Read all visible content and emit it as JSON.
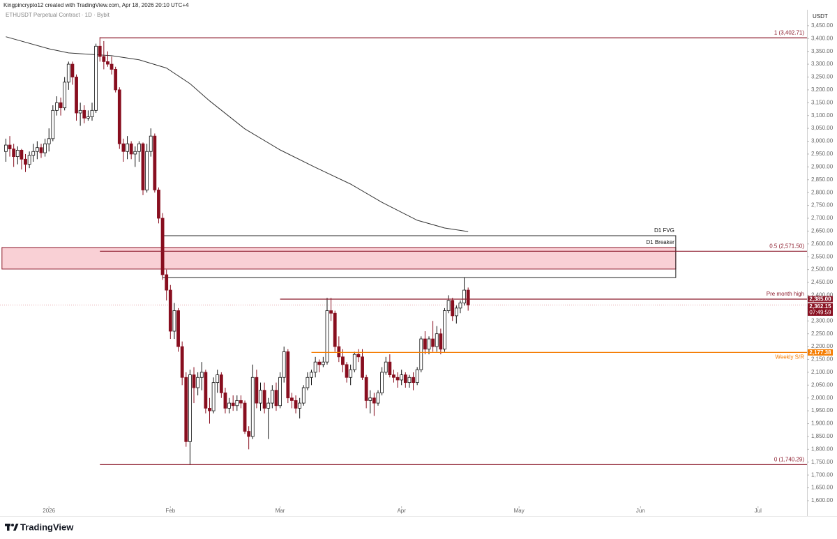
{
  "header": {
    "credit": "Kingpincrypto12 created with TradingView.com, Apr 18, 2026 20:10 UTC+4"
  },
  "brand": "TradingView",
  "chart_data": {
    "type": "candlestick",
    "title": "ETHUSDT Perpetual Contract · 1D · Bybit",
    "currency": "USDT",
    "up_color": "#ffffff",
    "down_color": "#880e1f",
    "outline_color": "#111111",
    "xlim": [
      -12.5,
      193.5
    ],
    "xticks": [
      {
        "value": 0,
        "label": "2026"
      },
      {
        "value": 31,
        "label": "Feb"
      },
      {
        "value": 59,
        "label": "Mar"
      },
      {
        "value": 90,
        "label": "Apr"
      },
      {
        "value": 120,
        "label": "May"
      },
      {
        "value": 151,
        "label": "Jun"
      },
      {
        "value": 181,
        "label": "Jul"
      }
    ],
    "ylim": [
      1581,
      3512
    ],
    "yticks": [
      {
        "value": 1600,
        "label": "1,600.00"
      },
      {
        "value": 1650,
        "label": "1,650.00"
      },
      {
        "value": 1700,
        "label": "1,700.00"
      },
      {
        "value": 1750,
        "label": "1,750.00"
      },
      {
        "value": 1800,
        "label": "1,800.00"
      },
      {
        "value": 1850,
        "label": "1,850.00"
      },
      {
        "value": 1900,
        "label": "1,900.00"
      },
      {
        "value": 1950,
        "label": "1,950.00"
      },
      {
        "value": 2000,
        "label": "2,000.00"
      },
      {
        "value": 2050,
        "label": "2,050.00"
      },
      {
        "value": 2100,
        "label": "2,100.00"
      },
      {
        "value": 2150,
        "label": "2,150.00"
      },
      {
        "value": 2200,
        "label": "2,200.00"
      },
      {
        "value": 2250,
        "label": "2,250.00"
      },
      {
        "value": 2300,
        "label": "2,300.00"
      },
      {
        "value": 2350,
        "label": "2,350.00"
      },
      {
        "value": 2400,
        "label": "2,400.00"
      },
      {
        "value": 2450,
        "label": "2,450.00"
      },
      {
        "value": 2500,
        "label": "2,500.00"
      },
      {
        "value": 2550,
        "label": "2,550.00"
      },
      {
        "value": 2600,
        "label": "2,600.00"
      },
      {
        "value": 2650,
        "label": "2,650.00"
      },
      {
        "value": 2700,
        "label": "2,700.00"
      },
      {
        "value": 2750,
        "label": "2,750.00"
      },
      {
        "value": 2800,
        "label": "2,800.00"
      },
      {
        "value": 2850,
        "label": "2,850.00"
      },
      {
        "value": 2900,
        "label": "2,900.00"
      },
      {
        "value": 2950,
        "label": "2,950.00"
      },
      {
        "value": 3000,
        "label": "3,000.00"
      },
      {
        "value": 3050,
        "label": "3,050.00"
      },
      {
        "value": 3100,
        "label": "3,100.00"
      },
      {
        "value": 3150,
        "label": "3,150.00"
      },
      {
        "value": 3200,
        "label": "3,200.00"
      },
      {
        "value": 3250,
        "label": "3,250.00"
      },
      {
        "value": 3300,
        "label": "3,300.00"
      },
      {
        "value": 3350,
        "label": "3,350.00"
      },
      {
        "value": 3400,
        "label": "3,400.00"
      },
      {
        "value": 3450,
        "label": "3,450.00"
      }
    ],
    "x": [
      -11,
      -10,
      -9,
      -8,
      -7,
      -6,
      -5,
      -4,
      -3,
      -2,
      -1,
      0,
      1,
      2,
      3,
      4,
      5,
      6,
      7,
      8,
      9,
      10,
      11,
      12,
      13,
      14,
      15,
      16,
      17,
      18,
      19,
      20,
      21,
      22,
      23,
      24,
      25,
      26,
      27,
      28,
      29,
      30,
      31,
      32,
      33,
      34,
      35,
      36,
      37,
      38,
      39,
      40,
      41,
      42,
      43,
      44,
      45,
      46,
      47,
      48,
      49,
      50,
      51,
      52,
      53,
      54,
      55,
      56,
      57,
      58,
      59,
      60,
      61,
      62,
      63,
      64,
      65,
      66,
      67,
      68,
      69,
      70,
      71,
      72,
      73,
      74,
      75,
      76,
      77,
      78,
      79,
      80,
      81,
      82,
      83,
      84,
      85,
      86,
      87,
      88,
      89,
      90,
      91,
      92,
      93,
      94,
      95,
      96,
      97,
      98,
      99,
      100,
      101,
      102,
      103,
      104,
      105,
      106,
      107
    ],
    "open": [
      2960,
      2985,
      2970,
      2940,
      2965,
      2930,
      2910,
      2945,
      2960,
      2975,
      2955,
      2990,
      3010,
      3120,
      3150,
      3130,
      3230,
      3300,
      3250,
      3110,
      3120,
      3090,
      3095,
      3120,
      3370,
      3330,
      3310,
      3300,
      3280,
      3200,
      2990,
      2960,
      2990,
      2950,
      2960,
      2990,
      2810,
      2960,
      3020,
      2810,
      2700,
      2480,
      2420,
      2260,
      2340,
      2200,
      2080,
      1830,
      2090,
      2040,
      2080,
      2100,
      1960,
      1950,
      2060,
      2090,
      2020,
      1960,
      1980,
      1970,
      1990,
      1980,
      1870,
      1850,
      2080,
      1980,
      2030,
      1960,
      1980,
      2030,
      1970,
      2080,
      2180,
      2000,
      1990,
      1960,
      1980,
      2040,
      2080,
      2100,
      2140,
      2130,
      2140,
      2340,
      2330,
      2200,
      2160,
      2130,
      2080,
      2110,
      2170,
      2160,
      2080,
      1990,
      2000,
      1980,
      2020,
      2100,
      2140,
      2090,
      2080,
      2070,
      2090,
      2060,
      2080,
      2060,
      2110,
      2230,
      2190,
      2230,
      2200,
      2250,
      2190,
      2340,
      2380,
      2320,
      2350,
      2370,
      2420
    ],
    "high": [
      3010,
      3020,
      2990,
      2980,
      2970,
      2950,
      2960,
      2990,
      3000,
      2990,
      3010,
      3050,
      3140,
      3175,
      3170,
      3250,
      3310,
      3310,
      3260,
      3150,
      3140,
      3120,
      3150,
      3380,
      3405,
      3390,
      3350,
      3330,
      3290,
      3210,
      3010,
      3020,
      3000,
      2980,
      3000,
      2995,
      2990,
      3050,
      3030,
      2820,
      2720,
      2500,
      2440,
      2370,
      2350,
      2220,
      2100,
      2110,
      2120,
      2100,
      2140,
      2110,
      2000,
      2080,
      2110,
      2100,
      2040,
      2000,
      2010,
      2010,
      2010,
      1990,
      1890,
      2130,
      2110,
      2060,
      2060,
      2000,
      2050,
      2060,
      2100,
      2200,
      2190,
      2020,
      2010,
      2000,
      2050,
      2100,
      2110,
      2160,
      2150,
      2160,
      2390,
      2390,
      2340,
      2240,
      2190,
      2140,
      2130,
      2180,
      2190,
      2190,
      2090,
      2030,
      2020,
      2030,
      2120,
      2160,
      2170,
      2110,
      2100,
      2110,
      2100,
      2090,
      2100,
      2120,
      2240,
      2260,
      2240,
      2300,
      2280,
      2270,
      2350,
      2400,
      2390,
      2360,
      2380,
      2470,
      2430
    ],
    "low": [
      2920,
      2940,
      2900,
      2910,
      2890,
      2880,
      2895,
      2920,
      2930,
      2935,
      2940,
      2960,
      3000,
      3100,
      3100,
      3120,
      3200,
      3220,
      3080,
      3060,
      3070,
      3080,
      3080,
      3110,
      3310,
      3280,
      3290,
      3260,
      3190,
      2970,
      2920,
      2930,
      2930,
      2900,
      2920,
      2790,
      2800,
      2940,
      2800,
      2680,
      2460,
      2380,
      2230,
      2230,
      2180,
      2050,
      1810,
      1740,
      1980,
      2010,
      2030,
      1940,
      1900,
      1940,
      2020,
      2000,
      1940,
      1940,
      1950,
      1950,
      1960,
      1860,
      1800,
      1840,
      1960,
      1950,
      1940,
      1840,
      1960,
      1950,
      1960,
      2060,
      1980,
      1960,
      1940,
      1920,
      1970,
      2030,
      2050,
      2080,
      2100,
      2120,
      2130,
      2300,
      2180,
      2140,
      2100,
      2060,
      2050,
      2100,
      2140,
      2070,
      1960,
      1940,
      1930,
      1970,
      2010,
      2090,
      2080,
      2060,
      2040,
      2050,
      2040,
      2040,
      2030,
      2050,
      2100,
      2170,
      2170,
      2180,
      2180,
      2170,
      2180,
      2330,
      2300,
      2290,
      2330,
      2360,
      2340
    ],
    "close": [
      2985,
      2970,
      2940,
      2965,
      2930,
      2910,
      2945,
      2960,
      2975,
      2955,
      2990,
      3010,
      3120,
      3150,
      3130,
      3230,
      3300,
      3250,
      3110,
      3120,
      3090,
      3095,
      3120,
      3370,
      3330,
      3310,
      3300,
      3280,
      3200,
      2990,
      2960,
      2990,
      2950,
      2960,
      2990,
      2810,
      2960,
      3020,
      2810,
      2700,
      2480,
      2420,
      2260,
      2340,
      2200,
      2080,
      1830,
      2090,
      2040,
      2080,
      2100,
      1960,
      1950,
      2060,
      2090,
      2020,
      1960,
      1980,
      1970,
      1990,
      1980,
      1870,
      1850,
      2080,
      1980,
      2030,
      1960,
      1980,
      2030,
      1970,
      2080,
      2180,
      2000,
      1990,
      1960,
      1980,
      2040,
      2080,
      2100,
      2140,
      2130,
      2140,
      2340,
      2330,
      2200,
      2160,
      2130,
      2080,
      2110,
      2170,
      2160,
      2080,
      1990,
      2000,
      1980,
      2020,
      2100,
      2140,
      2090,
      2080,
      2070,
      2090,
      2060,
      2080,
      2060,
      2110,
      2230,
      2190,
      2230,
      2200,
      2250,
      2190,
      2340,
      2380,
      2320,
      2350,
      2370,
      2420,
      2362.15
    ],
    "ma": {
      "color": "#333333",
      "x": [
        -11,
        0,
        5,
        16,
        23,
        30,
        36,
        41,
        50,
        59,
        68,
        77,
        85,
        94,
        101,
        107
      ],
      "values": [
        3407,
        3360,
        3344,
        3333,
        3317,
        3285,
        3224,
        3157,
        3048,
        2966,
        2898,
        2833,
        2762,
        2692,
        2662,
        2648
      ]
    },
    "boxes": [
      {
        "label": "D1 Breaker",
        "start": -12,
        "end": 160,
        "top": 2586,
        "bottom": 2502,
        "fill": "#f9d0d5",
        "stroke": "#8b1a2b"
      },
      {
        "label": "D1 FVG",
        "start": 29,
        "end": 160,
        "top": 2632,
        "bottom": 2469,
        "fill": "none",
        "stroke": "#222222"
      }
    ],
    "levels": [
      {
        "label": "1 (3,402.71)",
        "value": 3402.71,
        "start": 13,
        "color": "#8b1a2b"
      },
      {
        "label": "0.5 (2,571.50)",
        "value": 2571.5,
        "start": 13,
        "color": "#8b1a2b"
      },
      {
        "label": "0 (1,740.29)",
        "value": 1740.29,
        "start": 13,
        "color": "#8b1a2b"
      },
      {
        "label": "Pre month high",
        "value": 2385,
        "value_label": "2,385.00",
        "start": 59,
        "color": "#8b1a2b"
      },
      {
        "label": "Weekly S/R",
        "value": 2177.38,
        "value_label": "2,177.38",
        "start": 67,
        "color": "#f57c00",
        "label_below": true
      }
    ],
    "last_price": 2362.15,
    "last_price_label": "2,362.15",
    "countdown": "07:49:59"
  }
}
